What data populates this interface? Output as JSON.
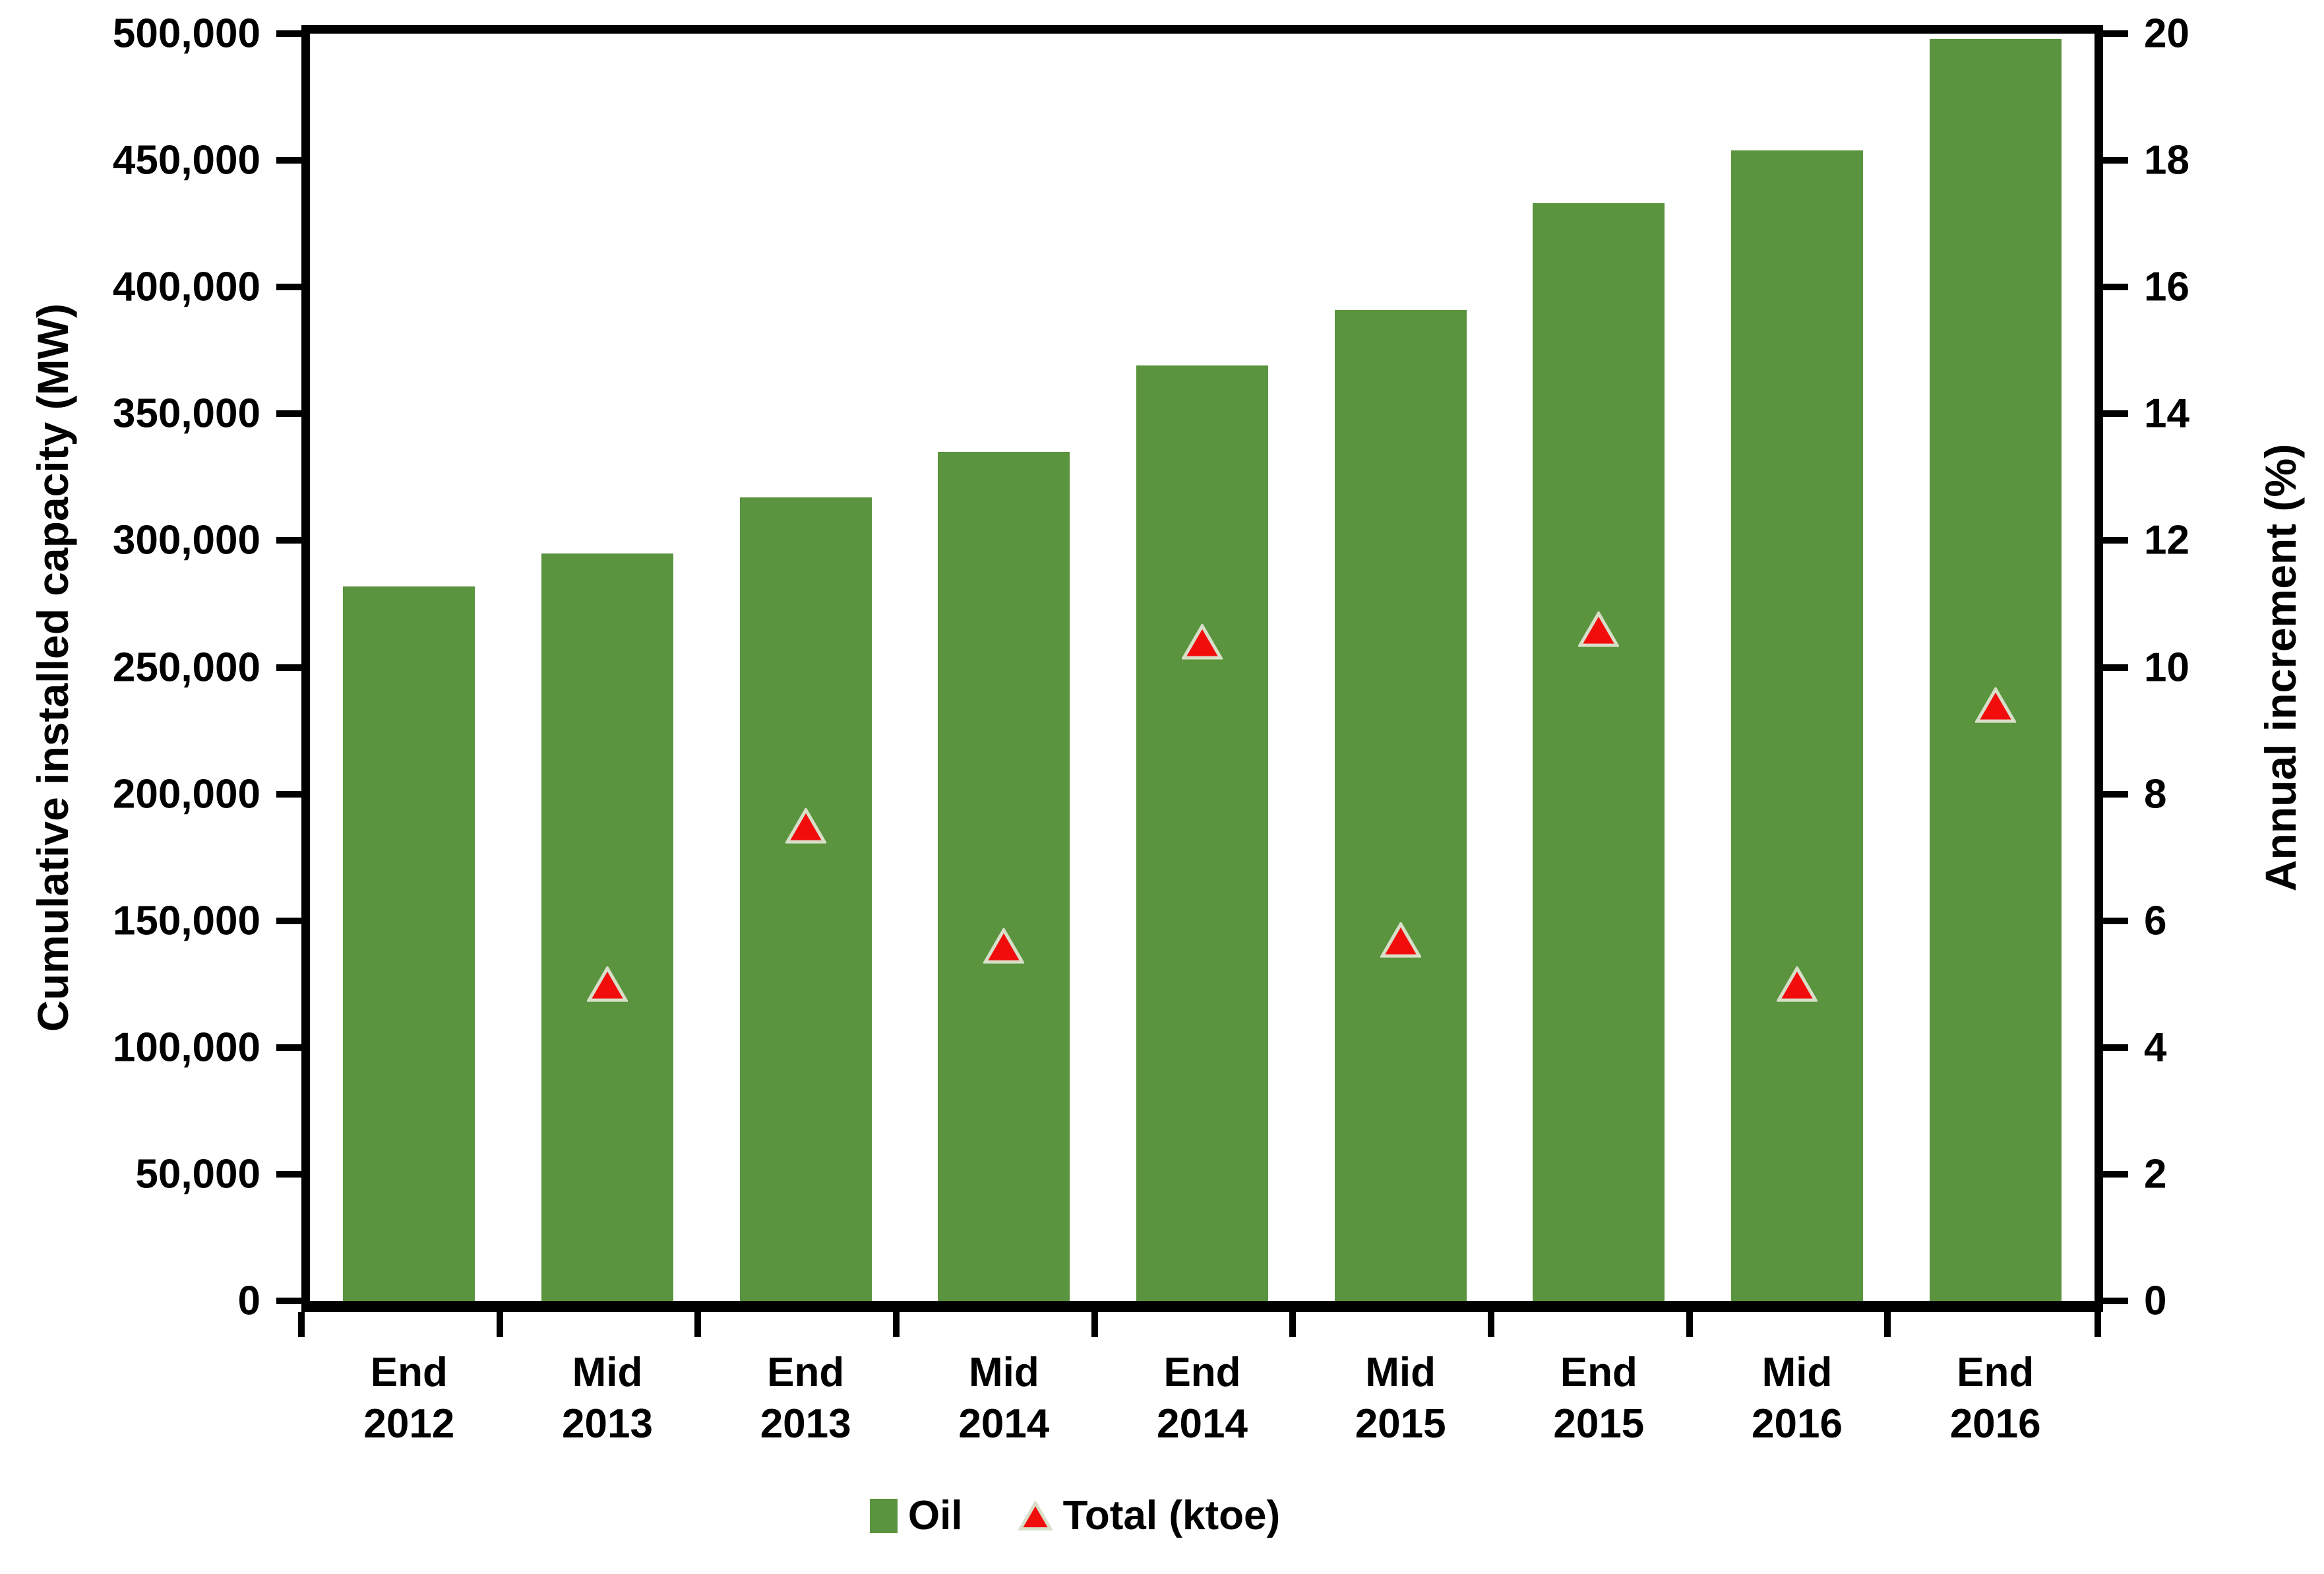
{
  "chart_data": {
    "type": "combo-bar-scatter",
    "title": "",
    "categories": [
      "End 2012",
      "Mid 2013",
      "End 2013",
      "Mid 2014",
      "End 2014",
      "Mid 2015",
      "End 2015",
      "Mid 2016",
      "End 2016"
    ],
    "series": [
      {
        "name": "Oil",
        "type": "bar",
        "axis": "left",
        "color": "#5a943e",
        "values": [
          282000,
          295000,
          317000,
          335000,
          369000,
          391000,
          433000,
          454000,
          498000
        ]
      },
      {
        "name": "Total (ktoe)",
        "type": "scatter",
        "marker": "triangle",
        "axis": "right",
        "color": "#f20d0d",
        "marker_outline": "#d7dfc9",
        "values": [
          null,
          5.0,
          7.5,
          5.6,
          10.4,
          5.7,
          10.6,
          5.0,
          9.4
        ]
      }
    ],
    "left_axis": {
      "label": "Cumulative installed capacity (MW)",
      "min": 0,
      "max": 500000,
      "step": 50000,
      "tick_labels": [
        "0",
        "50,000",
        "100,000",
        "150,000",
        "200,000",
        "250,000",
        "300,000",
        "350,000",
        "400,000",
        "450,000",
        "500,000"
      ]
    },
    "right_axis": {
      "label": "Annual increment (%)",
      "min": 0,
      "max": 20,
      "step": 2,
      "tick_labels": [
        "0",
        "2",
        "4",
        "6",
        "8",
        "10",
        "12",
        "14",
        "16",
        "18",
        "20"
      ]
    },
    "x_axis": {
      "boundary_ticks": 10
    },
    "grid": false,
    "legend_position": "bottom",
    "plot_border_color": "#000000",
    "background_color": "#ffffff"
  }
}
